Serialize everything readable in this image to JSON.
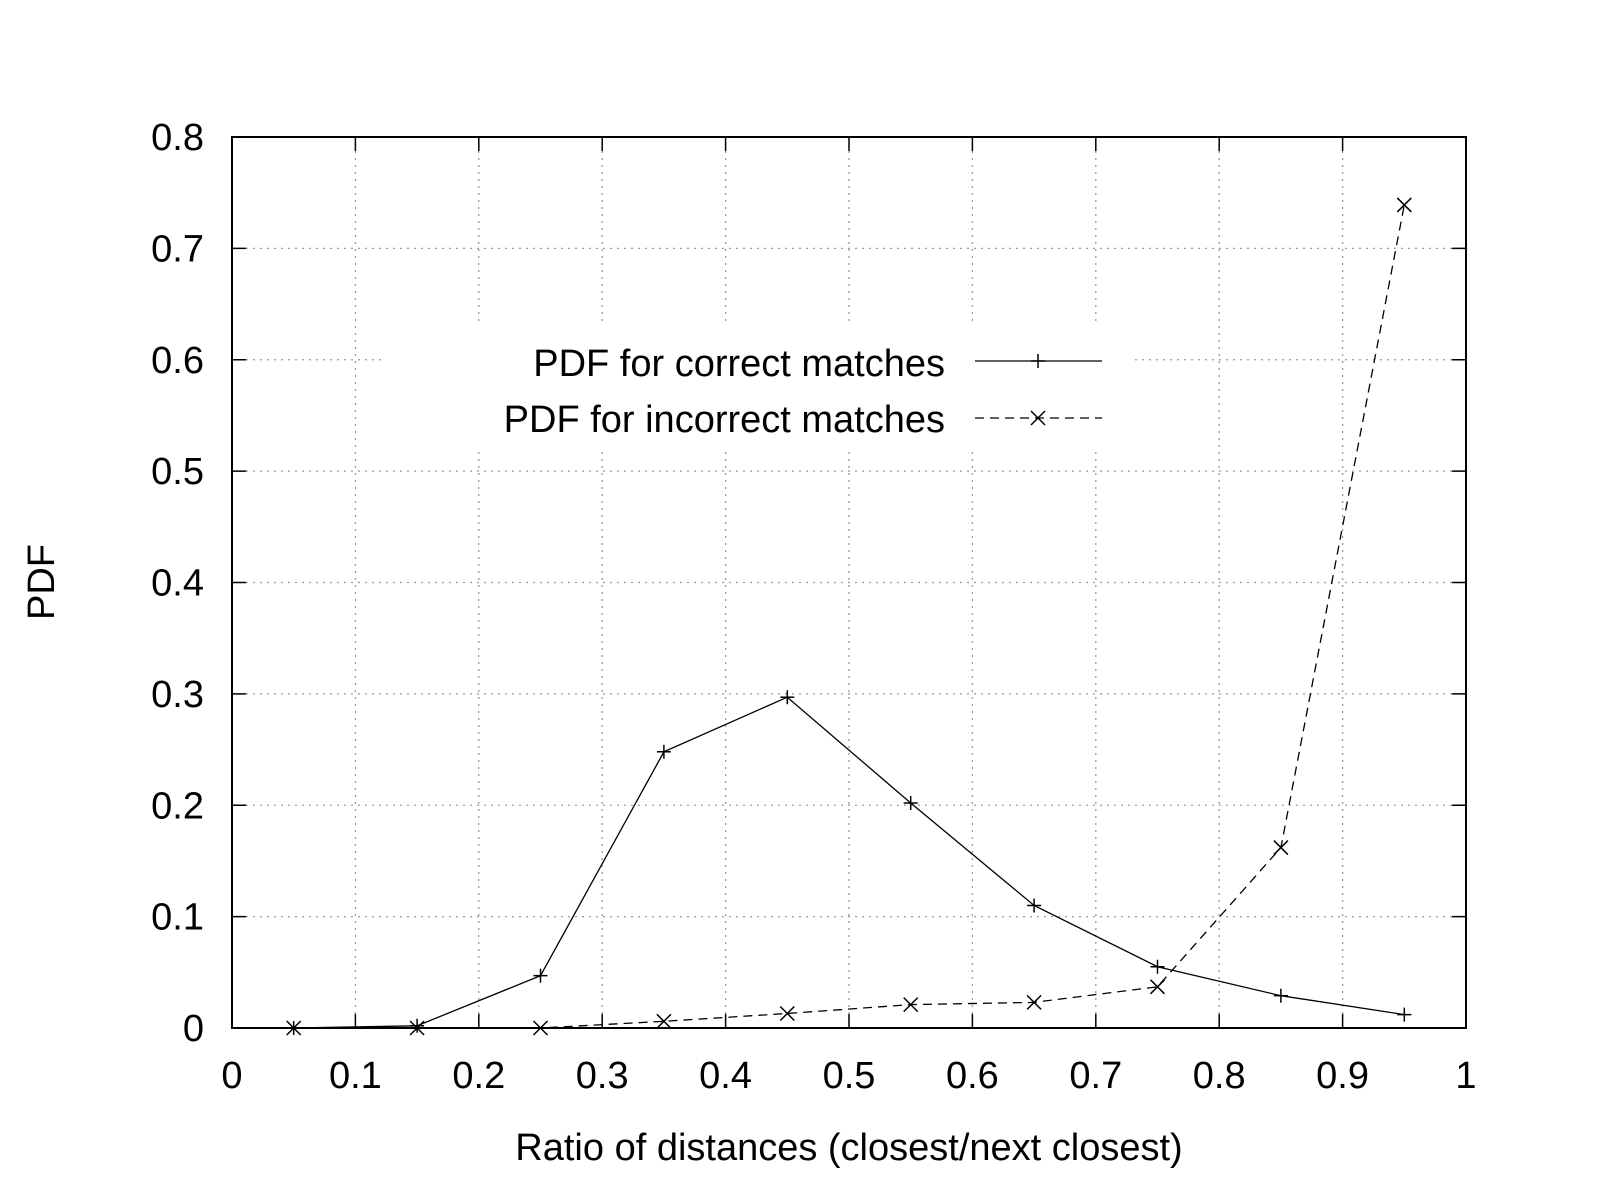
{
  "chart_data": {
    "type": "line",
    "title": "",
    "xlabel": "Ratio of distances (closest/next closest)",
    "ylabel": "PDF",
    "xlim": [
      0,
      1
    ],
    "ylim": [
      0,
      0.8
    ],
    "xticks": [
      "0",
      "0.1",
      "0.2",
      "0.3",
      "0.4",
      "0.5",
      "0.6",
      "0.7",
      "0.8",
      "0.9",
      "1"
    ],
    "yticks": [
      "0",
      "0.1",
      "0.2",
      "0.3",
      "0.4",
      "0.5",
      "0.6",
      "0.7",
      "0.8"
    ],
    "grid": true,
    "legend_position": "upper-left-center",
    "series": [
      {
        "name": "PDF for correct matches",
        "marker": "plus",
        "line_style": "solid",
        "x": [
          0.05,
          0.15,
          0.25,
          0.35,
          0.45,
          0.55,
          0.65,
          0.75,
          0.85,
          0.95
        ],
        "y": [
          0.0,
          0.002,
          0.047,
          0.248,
          0.297,
          0.202,
          0.11,
          0.055,
          0.029,
          0.012
        ]
      },
      {
        "name": "PDF for incorrect matches",
        "marker": "cross",
        "line_style": "dashed",
        "x": [
          0.05,
          0.15,
          0.25,
          0.35,
          0.45,
          0.55,
          0.65,
          0.75,
          0.85,
          0.95
        ],
        "y": [
          0.0,
          0.0,
          0.0,
          0.006,
          0.013,
          0.021,
          0.023,
          0.037,
          0.162,
          0.739
        ]
      }
    ]
  }
}
